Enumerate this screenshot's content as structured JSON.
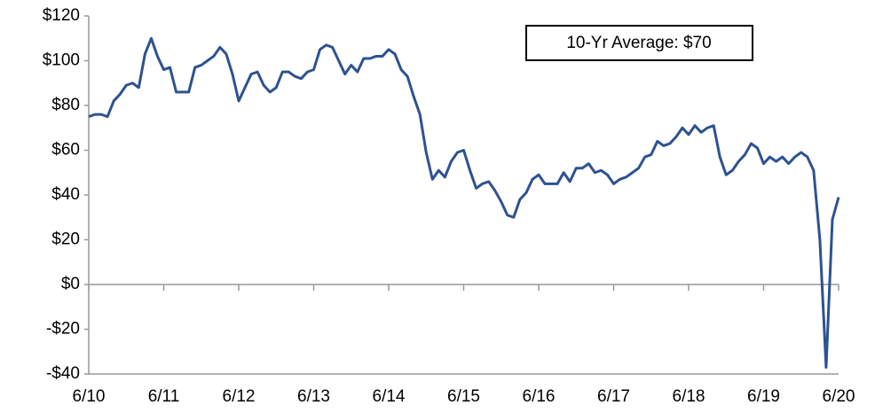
{
  "chart_data": {
    "type": "line",
    "annotation": "10-Yr Average: $70",
    "categories": [
      "6/10",
      null,
      null,
      null,
      null,
      null,
      null,
      null,
      null,
      null,
      null,
      null,
      "6/11",
      null,
      null,
      null,
      null,
      null,
      null,
      null,
      null,
      null,
      null,
      null,
      "6/12",
      null,
      null,
      null,
      null,
      null,
      null,
      null,
      null,
      null,
      null,
      null,
      "6/13",
      null,
      null,
      null,
      null,
      null,
      null,
      null,
      null,
      null,
      null,
      null,
      "6/14",
      null,
      null,
      null,
      null,
      null,
      null,
      null,
      null,
      null,
      null,
      null,
      "6/15",
      null,
      null,
      null,
      null,
      null,
      null,
      null,
      null,
      null,
      null,
      null,
      "6/16",
      null,
      null,
      null,
      null,
      null,
      null,
      null,
      null,
      null,
      null,
      null,
      "6/17",
      null,
      null,
      null,
      null,
      null,
      null,
      null,
      null,
      null,
      null,
      null,
      "6/18",
      null,
      null,
      null,
      null,
      null,
      null,
      null,
      null,
      null,
      null,
      null,
      "6/19",
      null,
      null,
      null,
      null,
      null,
      null,
      null,
      null,
      null,
      null,
      null,
      "6/20"
    ],
    "series": [
      {
        "color": "#2d5291",
        "values": [
          75,
          76,
          76,
          75,
          82,
          85,
          89,
          90,
          88,
          103,
          110,
          102,
          96,
          97,
          86,
          86,
          86,
          97,
          98,
          100,
          102,
          106,
          103,
          94,
          82,
          88,
          94,
          95,
          89,
          86,
          88,
          95,
          95,
          93,
          92,
          95,
          96,
          105,
          107,
          106,
          100,
          94,
          98,
          95,
          101,
          101,
          102,
          102,
          105,
          103,
          96,
          93,
          84,
          76,
          59,
          47,
          51,
          48,
          55,
          59,
          60,
          51,
          43,
          45,
          46,
          42,
          37,
          31,
          30,
          38,
          41,
          47,
          49,
          45,
          45,
          45,
          50,
          46,
          52,
          52,
          54,
          50,
          51,
          49,
          45,
          47,
          48,
          50,
          52,
          57,
          58,
          64,
          62,
          63,
          66,
          70,
          67,
          71,
          68,
          70,
          71,
          57,
          49,
          51,
          55,
          58,
          63,
          61,
          54,
          57,
          55,
          57,
          54,
          57,
          59,
          57,
          51,
          20,
          -37,
          29,
          39
        ]
      }
    ],
    "ylim": [
      -40,
      120
    ],
    "yticks": [
      {
        "value": 120,
        "label": "$120"
      },
      {
        "value": 100,
        "label": "$100"
      },
      {
        "value": 80,
        "label": "$80"
      },
      {
        "value": 60,
        "label": "$60"
      },
      {
        "value": 40,
        "label": "$40"
      },
      {
        "value": 20,
        "label": "$20"
      },
      {
        "value": 0,
        "label": "$0"
      },
      {
        "value": -20,
        "label": "-$20"
      },
      {
        "value": -40,
        "label": "-$40"
      }
    ],
    "grid": false
  }
}
